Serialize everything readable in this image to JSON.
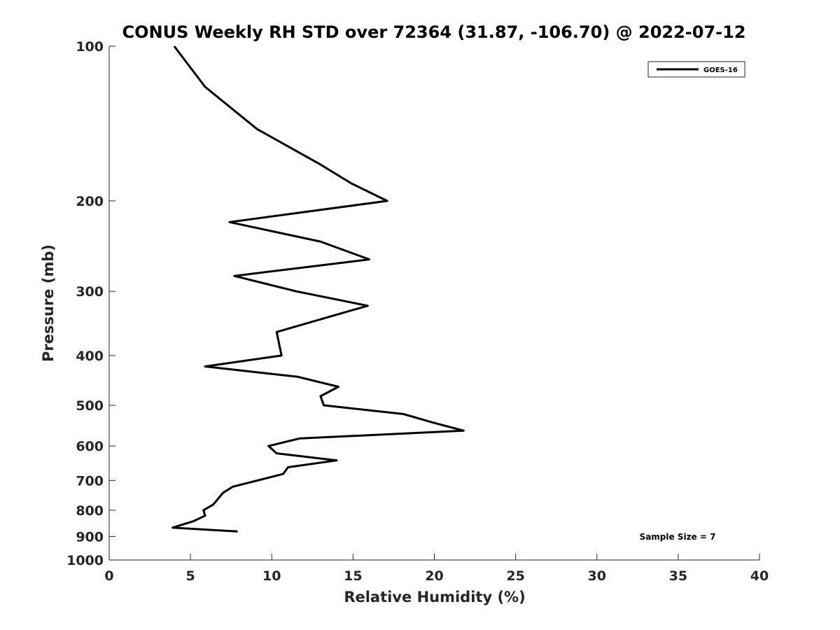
{
  "chart_data": {
    "type": "line",
    "title": "CONUS Weekly RH STD over 72364 (31.87, -106.70) @ 2022-07-12",
    "xlabel": "Relative Humidity (%)",
    "ylabel": "Pressure (mb)",
    "xlim": [
      0,
      40
    ],
    "ylim": [
      100,
      1000
    ],
    "y_scale": "log",
    "y_reversed": true,
    "xticks": [
      0,
      5,
      10,
      15,
      20,
      25,
      30,
      35,
      40
    ],
    "yticks": [
      100,
      200,
      300,
      400,
      500,
      600,
      700,
      800,
      900,
      1000
    ],
    "grid": false,
    "legend_position": "top-right",
    "annotation": "Sample Size = 7",
    "series": [
      {
        "name": "GOES-16",
        "color": "#000000",
        "points": [
          {
            "x": 4.0,
            "y": 100
          },
          {
            "x": 5.9,
            "y": 120
          },
          {
            "x": 9.1,
            "y": 145
          },
          {
            "x": 13.0,
            "y": 170
          },
          {
            "x": 14.9,
            "y": 185
          },
          {
            "x": 17.1,
            "y": 200
          },
          {
            "x": 7.4,
            "y": 220
          },
          {
            "x": 13.0,
            "y": 240
          },
          {
            "x": 16.0,
            "y": 260
          },
          {
            "x": 7.7,
            "y": 280
          },
          {
            "x": 11.5,
            "y": 300
          },
          {
            "x": 15.9,
            "y": 320
          },
          {
            "x": 10.3,
            "y": 360
          },
          {
            "x": 10.6,
            "y": 400
          },
          {
            "x": 5.9,
            "y": 420
          },
          {
            "x": 11.6,
            "y": 440
          },
          {
            "x": 14.1,
            "y": 460
          },
          {
            "x": 13.0,
            "y": 480
          },
          {
            "x": 13.2,
            "y": 500
          },
          {
            "x": 18.1,
            "y": 520
          },
          {
            "x": 19.9,
            "y": 540
          },
          {
            "x": 21.8,
            "y": 560
          },
          {
            "x": 11.7,
            "y": 580
          },
          {
            "x": 9.8,
            "y": 600
          },
          {
            "x": 10.3,
            "y": 620
          },
          {
            "x": 14.0,
            "y": 640
          },
          {
            "x": 11.0,
            "y": 660
          },
          {
            "x": 10.7,
            "y": 680
          },
          {
            "x": 7.6,
            "y": 720
          },
          {
            "x": 7.0,
            "y": 740
          },
          {
            "x": 6.4,
            "y": 780
          },
          {
            "x": 5.8,
            "y": 800
          },
          {
            "x": 5.9,
            "y": 820
          },
          {
            "x": 5.2,
            "y": 840
          },
          {
            "x": 3.9,
            "y": 865
          },
          {
            "x": 7.9,
            "y": 880
          }
        ]
      }
    ]
  }
}
